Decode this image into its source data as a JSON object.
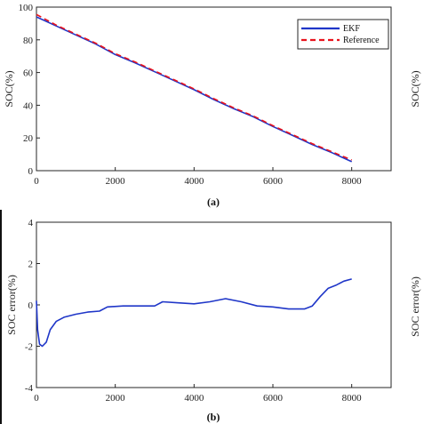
{
  "chart_data": [
    {
      "id": "soc",
      "type": "line",
      "caption": "(a)",
      "xlabel": "",
      "ylabel": "SOC(%)",
      "xlim": [
        0,
        9000
      ],
      "ylim": [
        0,
        100
      ],
      "xticks": [
        0,
        2000,
        4000,
        6000,
        8000
      ],
      "yticks": [
        0,
        20,
        40,
        60,
        80,
        100
      ],
      "grid": false,
      "legend_placement": "top-right",
      "series": [
        {
          "name": "EKF",
          "color": "#1f36c8",
          "style": "solid",
          "x": [
            0,
            500,
            1000,
            1500,
            2000,
            2500,
            3000,
            3500,
            4000,
            4500,
            5000,
            5500,
            6000,
            6500,
            7000,
            7500,
            8000
          ],
          "y": [
            94,
            88.5,
            83,
            77.5,
            71,
            66,
            60.5,
            55,
            49.5,
            43.5,
            38,
            33,
            27,
            21.5,
            16,
            11,
            5.5
          ]
        },
        {
          "name": "Reference",
          "color": "#e8131c",
          "style": "dashed",
          "x": [
            0,
            500,
            1000,
            1500,
            2000,
            2500,
            3000,
            3500,
            4000,
            4500,
            5000,
            5500,
            6000,
            6500,
            7000,
            7500,
            8000
          ],
          "y": [
            95.5,
            89,
            83.5,
            78,
            71.5,
            66.5,
            61,
            55.5,
            50,
            44,
            38.5,
            33.5,
            27.5,
            22,
            16.5,
            11.5,
            6.5
          ]
        }
      ]
    },
    {
      "id": "err",
      "type": "line",
      "caption": "(b)",
      "xlabel": "",
      "ylabel": "SOC error(%)",
      "xlim": [
        0,
        9000
      ],
      "ylim": [
        -4,
        4
      ],
      "xticks": [
        0,
        2000,
        4000,
        6000,
        8000
      ],
      "yticks": [
        -4,
        -2,
        0,
        2,
        4
      ],
      "grid": false,
      "series": [
        {
          "name": "",
          "color": "#1f36c8",
          "style": "solid",
          "x": [
            0,
            30,
            80,
            150,
            250,
            350,
            500,
            700,
            1000,
            1300,
            1600,
            1800,
            2200,
            2600,
            3000,
            3200,
            3600,
            4000,
            4400,
            4800,
            5200,
            5600,
            6000,
            6400,
            6800,
            7000,
            7200,
            7400,
            7600,
            7800,
            8000
          ],
          "y": [
            0.2,
            -1.2,
            -1.9,
            -2.0,
            -1.8,
            -1.2,
            -0.8,
            -0.6,
            -0.45,
            -0.35,
            -0.3,
            -0.1,
            -0.05,
            -0.05,
            -0.05,
            0.15,
            0.1,
            0.05,
            0.15,
            0.3,
            0.15,
            -0.05,
            -0.1,
            -0.2,
            -0.2,
            -0.05,
            0.4,
            0.8,
            0.95,
            1.15,
            1.25
          ]
        }
      ]
    }
  ],
  "cutoff": {
    "right_label_top": "SOC(%)",
    "right_label_bottom": "SOC error(%)"
  }
}
